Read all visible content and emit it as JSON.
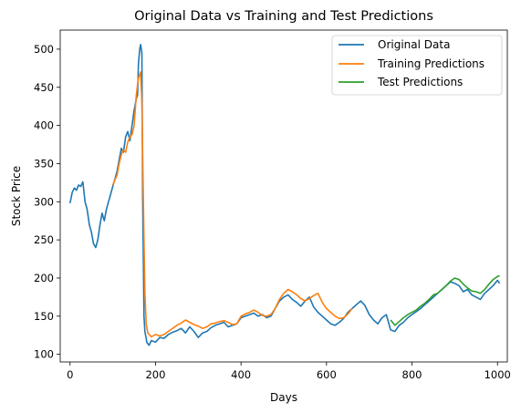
{
  "chart_data": {
    "type": "line",
    "title": "Original Data vs Training and Test Predictions",
    "xlabel": "Days",
    "ylabel": "Stock Price",
    "xlim": [
      -23,
      1023
    ],
    "ylim": [
      90,
      525
    ],
    "xticks": [
      0,
      200,
      400,
      600,
      800,
      1000
    ],
    "xtick_labels": [
      "0",
      "200",
      "400",
      "600",
      "800",
      "1000"
    ],
    "yticks": [
      100,
      150,
      200,
      250,
      300,
      350,
      400,
      450,
      500
    ],
    "ytick_labels": [
      "100",
      "150",
      "200",
      "250",
      "300",
      "350",
      "400",
      "450",
      "500"
    ],
    "grid": false,
    "legend_position": "top-right",
    "series": [
      {
        "name": "Original Data",
        "color": "#1f77b4",
        "x": [
          0,
          5,
          10,
          15,
          20,
          25,
          30,
          35,
          40,
          45,
          50,
          55,
          60,
          65,
          70,
          75,
          80,
          85,
          90,
          95,
          100,
          105,
          110,
          115,
          120,
          125,
          130,
          135,
          140,
          145,
          150,
          155,
          158,
          160,
          163,
          165,
          168,
          170,
          173,
          175,
          180,
          185,
          190,
          200,
          210,
          220,
          230,
          240,
          250,
          260,
          270,
          280,
          290,
          300,
          310,
          320,
          330,
          340,
          350,
          360,
          370,
          380,
          390,
          400,
          410,
          420,
          430,
          440,
          450,
          460,
          470,
          480,
          490,
          500,
          510,
          520,
          530,
          540,
          550,
          560,
          570,
          580,
          590,
          600,
          610,
          620,
          630,
          640,
          650,
          660,
          670,
          680,
          690,
          700,
          710,
          720,
          730,
          740,
          750,
          760,
          770,
          780,
          790,
          800,
          810,
          820,
          830,
          840,
          850,
          860,
          870,
          880,
          890,
          900,
          910,
          920,
          930,
          940,
          950,
          960,
          970,
          980,
          990,
          1000,
          1005
        ],
        "y": [
          298,
          312,
          318,
          315,
          322,
          320,
          326,
          300,
          290,
          270,
          260,
          245,
          240,
          250,
          270,
          285,
          275,
          290,
          300,
          310,
          320,
          330,
          340,
          355,
          370,
          365,
          385,
          392,
          380,
          400,
          420,
          435,
          440,
          480,
          500,
          506,
          495,
          300,
          150,
          130,
          115,
          112,
          118,
          116,
          122,
          121,
          126,
          129,
          131,
          134,
          128,
          136,
          130,
          122,
          128,
          130,
          135,
          138,
          140,
          142,
          136,
          138,
          140,
          148,
          150,
          152,
          154,
          150,
          152,
          148,
          150,
          160,
          170,
          175,
          178,
          172,
          168,
          163,
          170,
          175,
          162,
          155,
          150,
          145,
          140,
          138,
          142,
          147,
          155,
          160,
          165,
          170,
          164,
          152,
          145,
          140,
          148,
          152,
          132,
          130,
          138,
          142,
          148,
          152,
          156,
          160,
          165,
          170,
          175,
          180,
          185,
          190,
          195,
          193,
          190,
          182,
          185,
          178,
          175,
          172,
          180,
          185,
          190,
          197,
          193
        ]
      },
      {
        "name": "Training Predictions",
        "color": "#ff7f0e",
        "x": [
          100,
          110,
          115,
          120,
          125,
          130,
          135,
          140,
          145,
          150,
          155,
          160,
          163,
          165,
          168,
          170,
          173,
          175,
          178,
          182,
          190,
          200,
          210,
          220,
          230,
          240,
          250,
          260,
          270,
          280,
          290,
          300,
          310,
          320,
          330,
          340,
          350,
          360,
          370,
          380,
          390,
          400,
          410,
          420,
          430,
          440,
          450,
          460,
          470,
          480,
          490,
          500,
          510,
          520,
          530,
          540,
          550,
          560,
          570,
          580,
          590,
          600,
          610,
          620,
          630,
          640,
          650,
          660
        ],
        "y": [
          322,
          335,
          350,
          362,
          368,
          365,
          378,
          385,
          388,
          400,
          440,
          462,
          466,
          470,
          430,
          360,
          250,
          180,
          140,
          128,
          123,
          126,
          124,
          126,
          130,
          134,
          138,
          141,
          145,
          142,
          139,
          137,
          134,
          136,
          140,
          141,
          143,
          144,
          142,
          139,
          140,
          150,
          153,
          155,
          158,
          155,
          151,
          150,
          152,
          160,
          172,
          180,
          185,
          182,
          178,
          173,
          170,
          173,
          177,
          180,
          168,
          160,
          155,
          150,
          147,
          148,
          153,
          160
        ]
      },
      {
        "name": "Test Predictions",
        "color": "#2ca02c",
        "x": [
          750,
          760,
          770,
          780,
          790,
          800,
          810,
          820,
          830,
          840,
          850,
          860,
          870,
          880,
          890,
          900,
          910,
          920,
          930,
          940,
          950,
          960,
          970,
          980,
          990,
          1000,
          1005
        ],
        "y": [
          145,
          138,
          143,
          148,
          152,
          155,
          158,
          163,
          167,
          172,
          178,
          180,
          185,
          190,
          196,
          200,
          198,
          192,
          187,
          183,
          182,
          180,
          185,
          192,
          198,
          202,
          203
        ]
      }
    ]
  }
}
